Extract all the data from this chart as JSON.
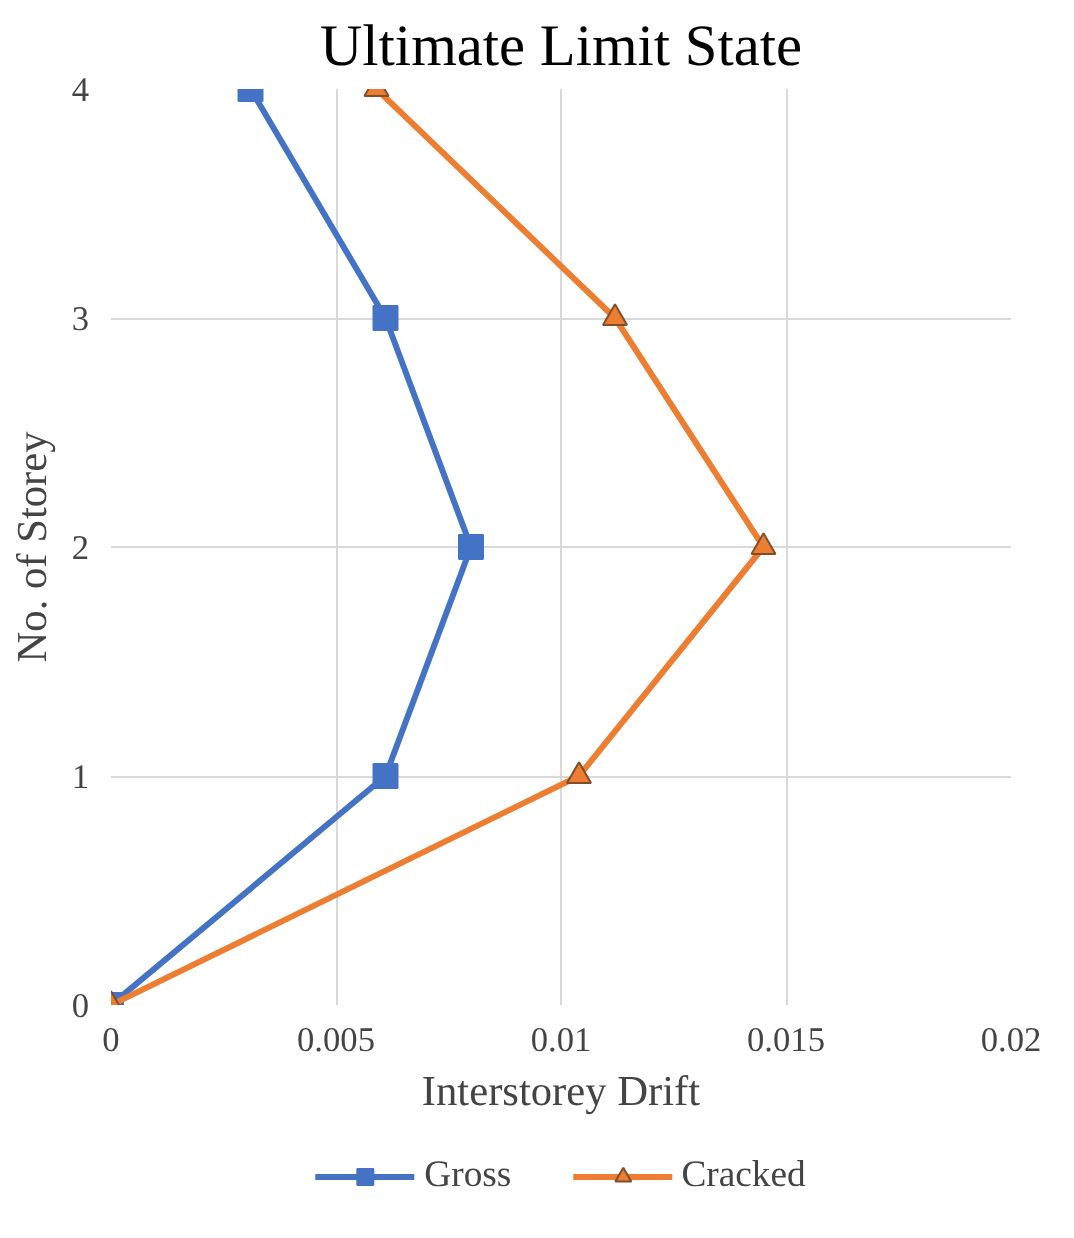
{
  "chart_data": {
    "type": "line",
    "title": "Ultimate Limit State",
    "xlabel": "Interstorey Drift",
    "ylabel": "No. of Storey",
    "xlim": [
      0,
      0.02
    ],
    "xticks": [
      0,
      0.005,
      0.01,
      0.015,
      0.02
    ],
    "ylim": [
      0,
      4
    ],
    "yticks": [
      0,
      1,
      2,
      3,
      4
    ],
    "grid": true,
    "legend": "bottom",
    "series": [
      {
        "name": "Gross",
        "color": "#4472c4",
        "marker": "square",
        "x": [
          0,
          0.0061,
          0.008,
          0.0061,
          0.0031
        ],
        "values": [
          0,
          1,
          2,
          3,
          4
        ]
      },
      {
        "name": "Cracked",
        "color": "#ed7d31",
        "marker": "triangle",
        "x": [
          0,
          0.0104,
          0.0145,
          0.0112,
          0.0059
        ],
        "values": [
          0,
          1,
          2,
          3,
          4
        ]
      }
    ]
  }
}
